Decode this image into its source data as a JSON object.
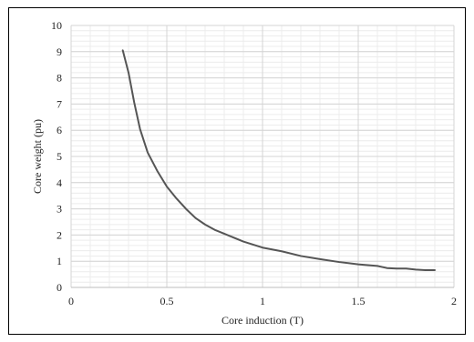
{
  "chart_data": {
    "type": "line",
    "title": "",
    "xlabel": "Core induction (T)",
    "ylabel": "Core weight (pu)",
    "xlim": [
      0,
      2
    ],
    "ylim": [
      0,
      10
    ],
    "xticks": [
      0,
      0.5,
      1,
      1.5,
      2
    ],
    "xtick_labels": [
      "0",
      "0.5",
      "1",
      "1.5",
      "2"
    ],
    "yticks": [
      0,
      1,
      2,
      3,
      4,
      5,
      6,
      7,
      8,
      9,
      10
    ],
    "ytick_labels": [
      "0",
      "1",
      "2",
      "3",
      "4",
      "5",
      "6",
      "7",
      "8",
      "9",
      "10"
    ],
    "grid": true,
    "legend": "none",
    "colors": {
      "line": "#555555",
      "major_grid": "#d4d4d4",
      "minor_grid": "#ececec",
      "frame": "#000000"
    },
    "series": [
      {
        "x": [
          0.27,
          0.3,
          0.33,
          0.36,
          0.4,
          0.45,
          0.5,
          0.55,
          0.6,
          0.65,
          0.7,
          0.75,
          0.8,
          0.9,
          1.0,
          1.1,
          1.2,
          1.3,
          1.4,
          1.5,
          1.6,
          1.65,
          1.7,
          1.75,
          1.8,
          1.85,
          1.9
        ],
        "y": [
          9.05,
          8.2,
          7.05,
          6.05,
          5.15,
          4.45,
          3.85,
          3.4,
          3.0,
          2.65,
          2.4,
          2.2,
          2.05,
          1.75,
          1.52,
          1.38,
          1.2,
          1.08,
          0.97,
          0.88,
          0.82,
          0.74,
          0.72,
          0.72,
          0.68,
          0.66,
          0.66
        ]
      }
    ]
  }
}
